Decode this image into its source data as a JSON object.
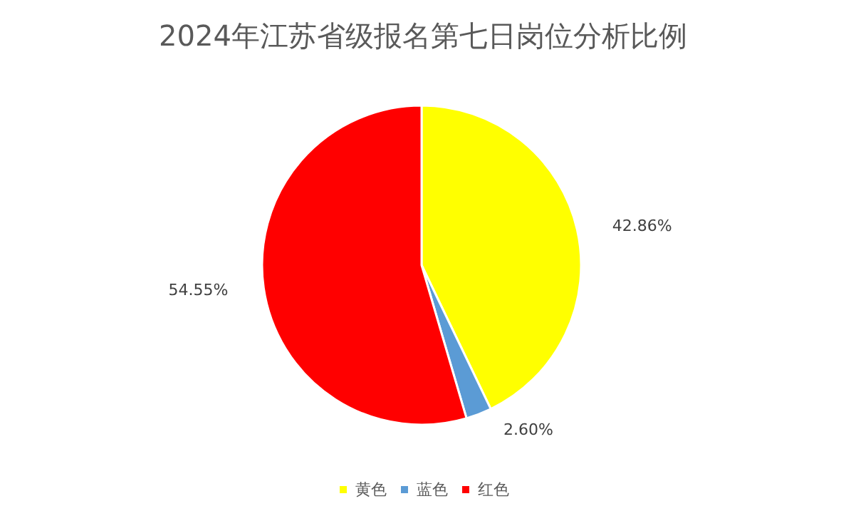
{
  "chart_data": {
    "type": "pie",
    "title": "2024年江苏省级报名第七日岗位分析比例",
    "categories": [
      "黄色",
      "蓝色",
      "红色"
    ],
    "values": [
      42.86,
      2.6,
      54.55
    ],
    "colors": [
      "#ffff00",
      "#5b9bd5",
      "#ff0000"
    ],
    "value_labels": [
      "42.86%",
      "2.60%",
      "54.55%"
    ],
    "legend": "bottom"
  }
}
